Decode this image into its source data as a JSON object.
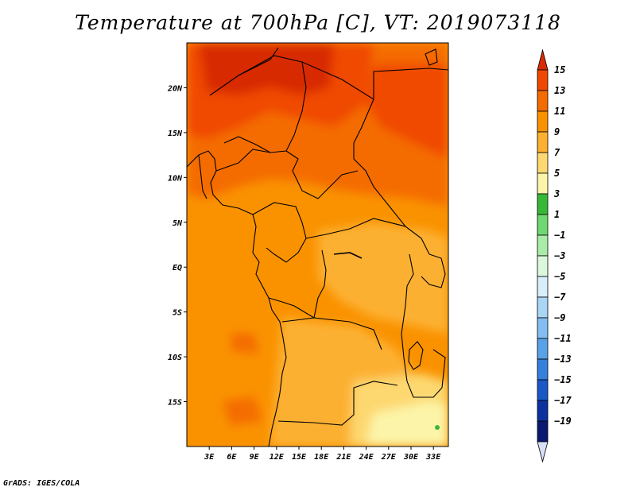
{
  "title": "Temperature at 700hPa [C], VT: 2019073118",
  "credit": "GrADS: IGES/COLA",
  "map": {
    "lat_labels": [
      "20N",
      "15N",
      "10N",
      "5N",
      "EQ",
      "5S",
      "10S",
      "15S"
    ],
    "lat_values": [
      20,
      15,
      10,
      5,
      0,
      -5,
      -10,
      -15
    ],
    "lon_labels": [
      "3E",
      "6E",
      "9E",
      "12E",
      "15E",
      "18E",
      "21E",
      "24E",
      "27E",
      "30E",
      "33E"
    ],
    "lon_values": [
      3,
      6,
      9,
      12,
      15,
      18,
      21,
      24,
      27,
      30,
      33
    ],
    "lon_range": [
      0,
      35
    ],
    "lat_range": [
      -20,
      25
    ]
  },
  "colorbar": {
    "labels": [
      "15",
      "13",
      "11",
      "9",
      "7",
      "5",
      "3",
      "1",
      "−1",
      "−3",
      "−5",
      "−7",
      "−9",
      "−11",
      "−13",
      "−15",
      "−17",
      "−19"
    ],
    "colors": [
      "#d82a00",
      "#f04800",
      "#f46c00",
      "#fa9200",
      "#fcb030",
      "#fdd870",
      "#fcf4a8",
      "#38b838",
      "#70d870",
      "#a8eca8",
      "#dcf8dc",
      "#d8eefa",
      "#aad6f6",
      "#82bff0",
      "#5aa2e8",
      "#3480dc",
      "#1a58c8",
      "#0c32a0",
      "#0a1870",
      "#d8e0f8"
    ]
  }
}
